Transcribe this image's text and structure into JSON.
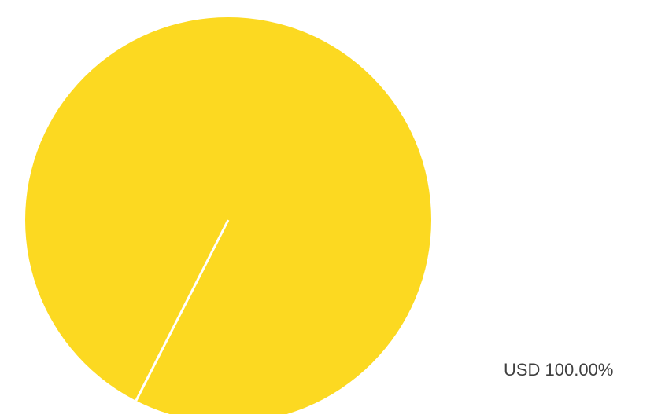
{
  "chart_data": {
    "type": "pie",
    "title": "",
    "categories": [
      "USD"
    ],
    "values": [
      100.0
    ],
    "data_labels": [
      "USD 100.00%"
    ],
    "colors": [
      "#FCD921"
    ],
    "start_angle_degrees": 117,
    "legend": "none"
  }
}
